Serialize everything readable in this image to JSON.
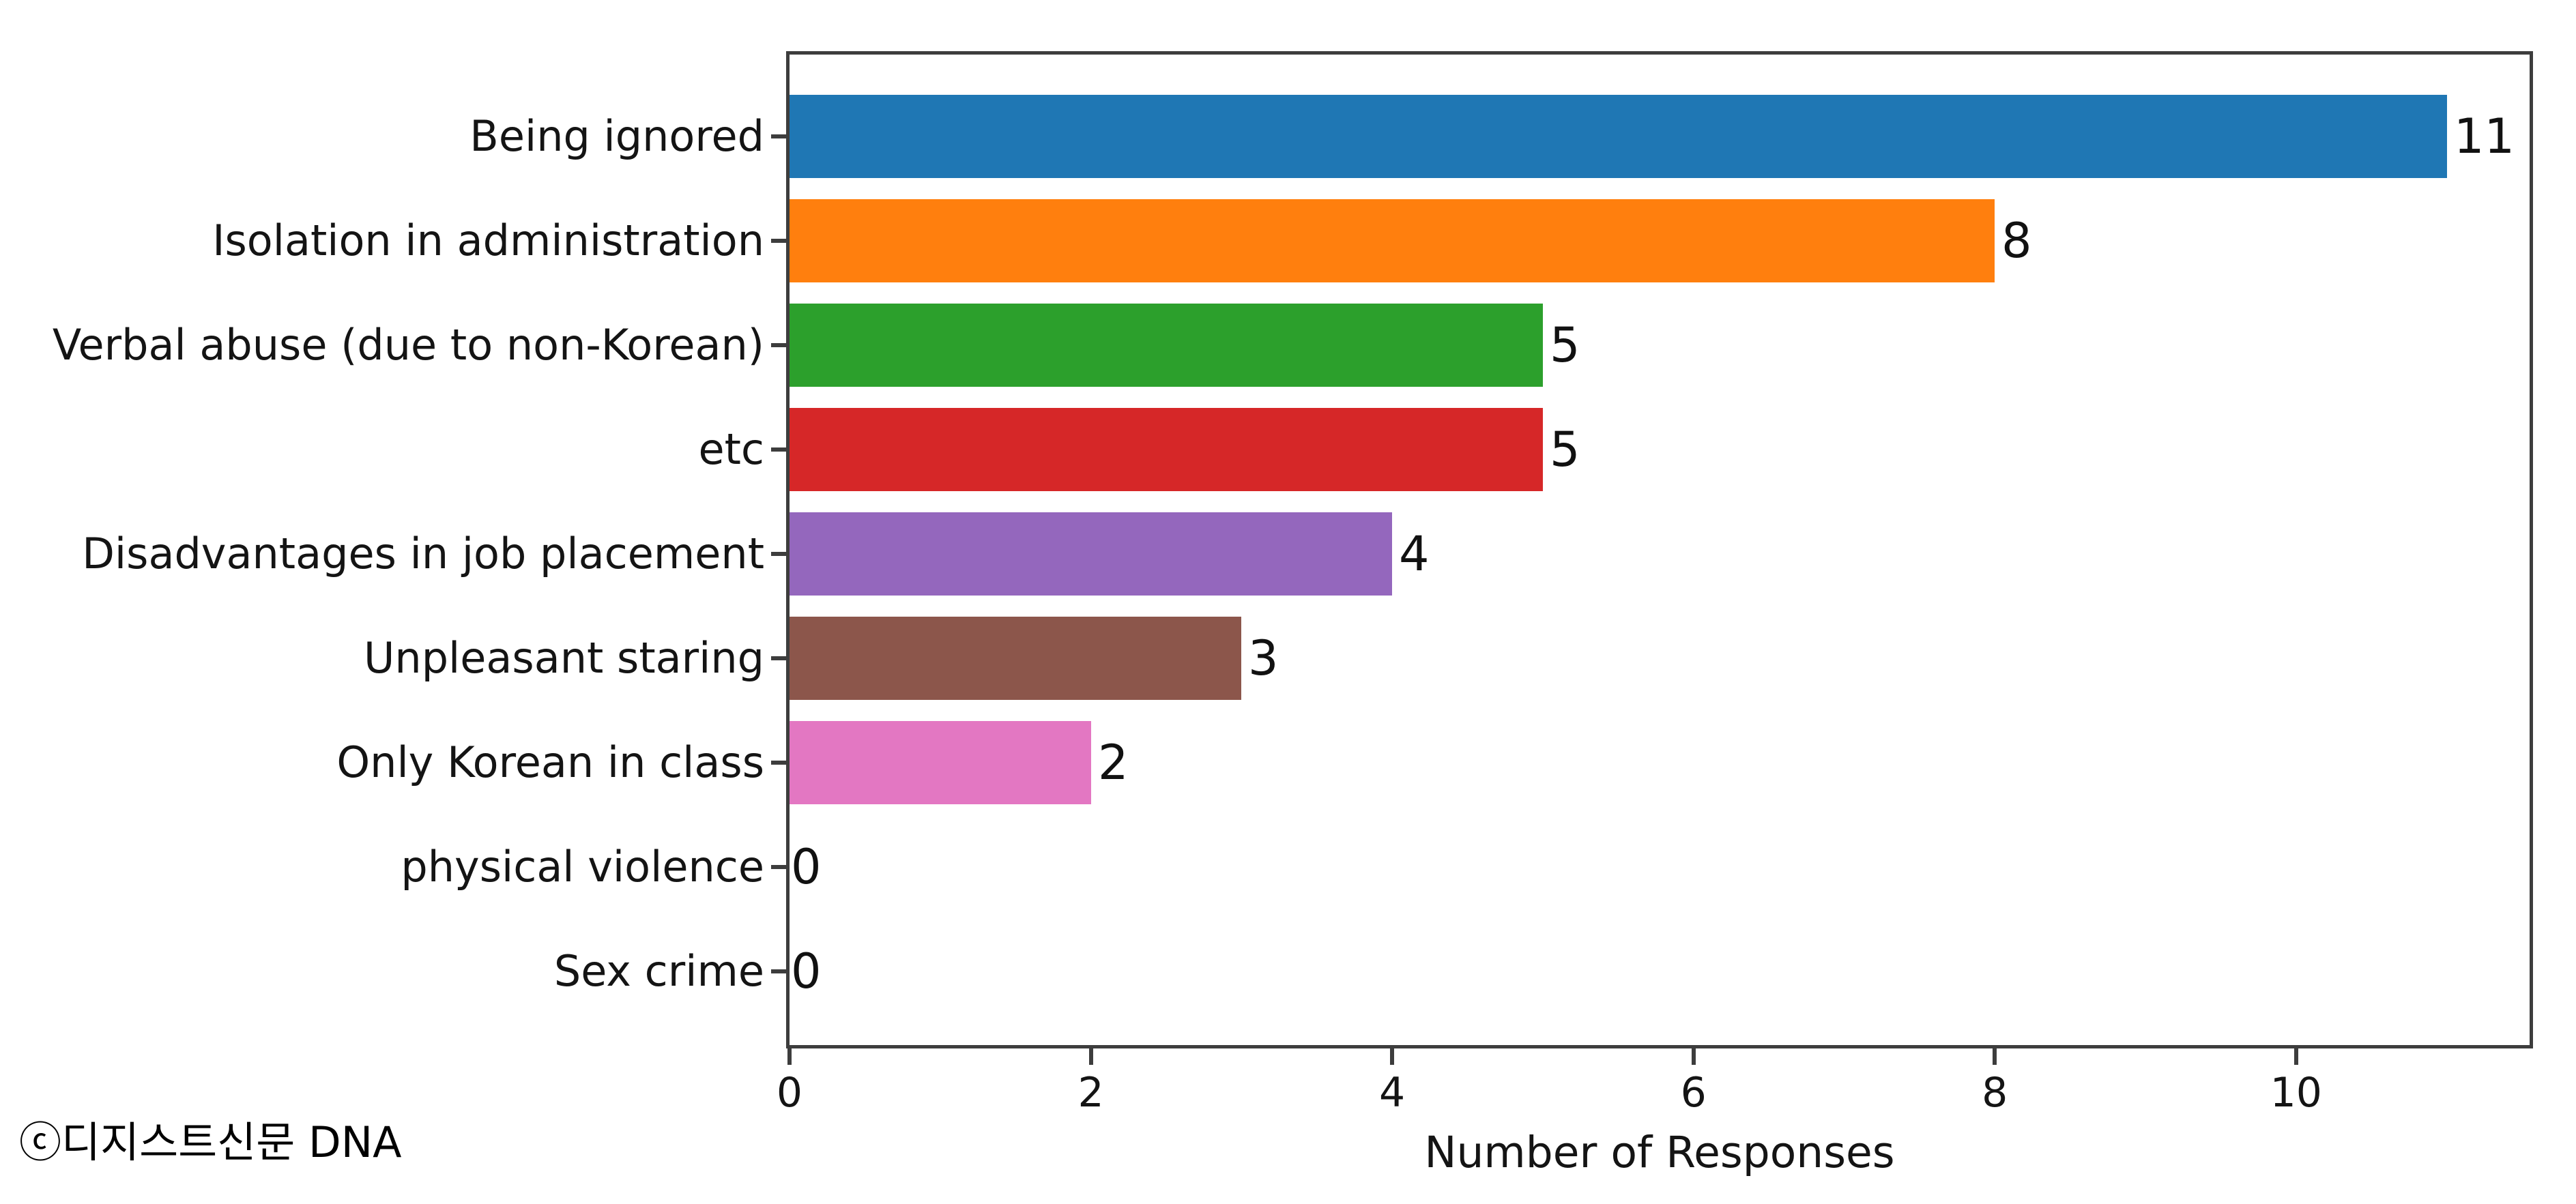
{
  "chart_data": {
    "type": "bar",
    "orientation": "horizontal",
    "title": "",
    "xlabel": "Number of Responses",
    "ylabel": "",
    "categories": [
      "Being ignored",
      "Isolation in administration",
      "Verbal abuse (due to non-Korean)",
      "etc",
      "Disadvantages in job placement",
      "Unpleasant staring",
      "Only Korean in class",
      "physical violence",
      "Sex crime"
    ],
    "values": [
      11,
      8,
      5,
      5,
      4,
      3,
      2,
      0,
      0
    ],
    "value_labels": [
      "11",
      "8",
      "5",
      "5",
      "4",
      "3",
      "2",
      "0",
      "0"
    ],
    "bar_colors": [
      "#1f77b4",
      "#ff7f0e",
      "#2ca02c",
      "#d62728",
      "#9467bd",
      "#8c564b",
      "#e377c2",
      null,
      null
    ],
    "xticks": [
      0,
      2,
      4,
      6,
      8,
      10
    ],
    "xlim": [
      0,
      11.55
    ],
    "grid": false,
    "legend": false
  },
  "watermark": "ⓒ디지스트신문 DNA",
  "colors": {
    "spine": "#3d3d3d",
    "text": "#141414",
    "background": "#ffffff"
  }
}
